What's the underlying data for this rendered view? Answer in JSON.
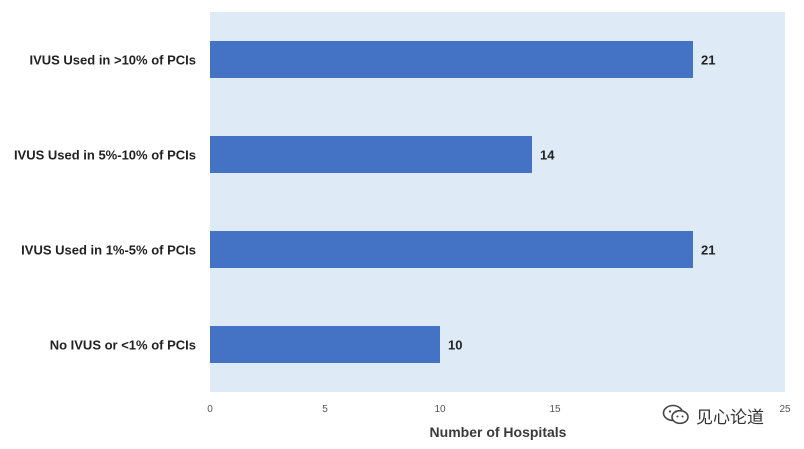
{
  "chart_data": {
    "type": "bar",
    "orientation": "horizontal",
    "categories": [
      "IVUS Used in >10% of PCIs",
      "IVUS Used in 5%-10% of PCIs",
      "IVUS Used in 1%-5% of PCIs",
      "No IVUS or <1% of PCIs"
    ],
    "values": [
      21,
      14,
      21,
      10
    ],
    "title": "",
    "xlabel": "Number of Hospitals",
    "ylabel": "",
    "xlim": [
      0,
      25
    ],
    "xticks": [
      "0",
      "5",
      "10",
      "15",
      "25"
    ],
    "xtick_values": [
      0,
      5,
      10,
      15,
      25
    ],
    "grid": false,
    "legend": "none",
    "bar_color": "#4472C4",
    "plot_background": "#DEEBF7"
  },
  "watermark": {
    "text": "见心论道",
    "icon": "wechat-icon"
  }
}
